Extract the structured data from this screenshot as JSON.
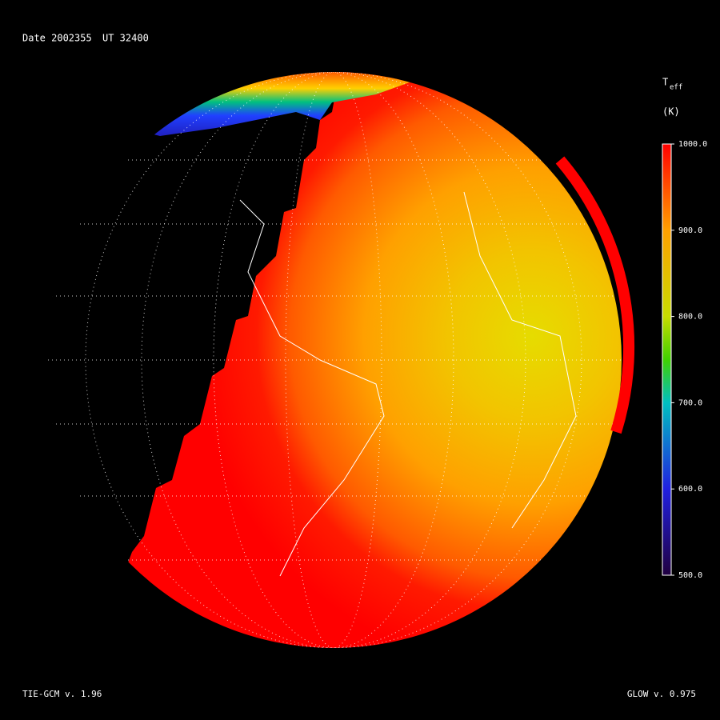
{
  "header": {
    "date": "Date 2002355",
    "ut": "UT 32400"
  },
  "colorbar": {
    "symbol": "T",
    "subscript": "eff",
    "unit": "(K)",
    "lim": [
      500,
      1000
    ],
    "ticks": [
      {
        "value": 1000,
        "label": "1000.0"
      },
      {
        "value": 900,
        "label": "900.0"
      },
      {
        "value": 800,
        "label": "800.0"
      },
      {
        "value": 700,
        "label": "700.0"
      },
      {
        "value": 600,
        "label": "600.0"
      },
      {
        "value": 500,
        "label": "500.0"
      }
    ]
  },
  "footer": {
    "left": "TIE-GCM v. 1.96",
    "right": "GLOW v. 0.975"
  }
}
